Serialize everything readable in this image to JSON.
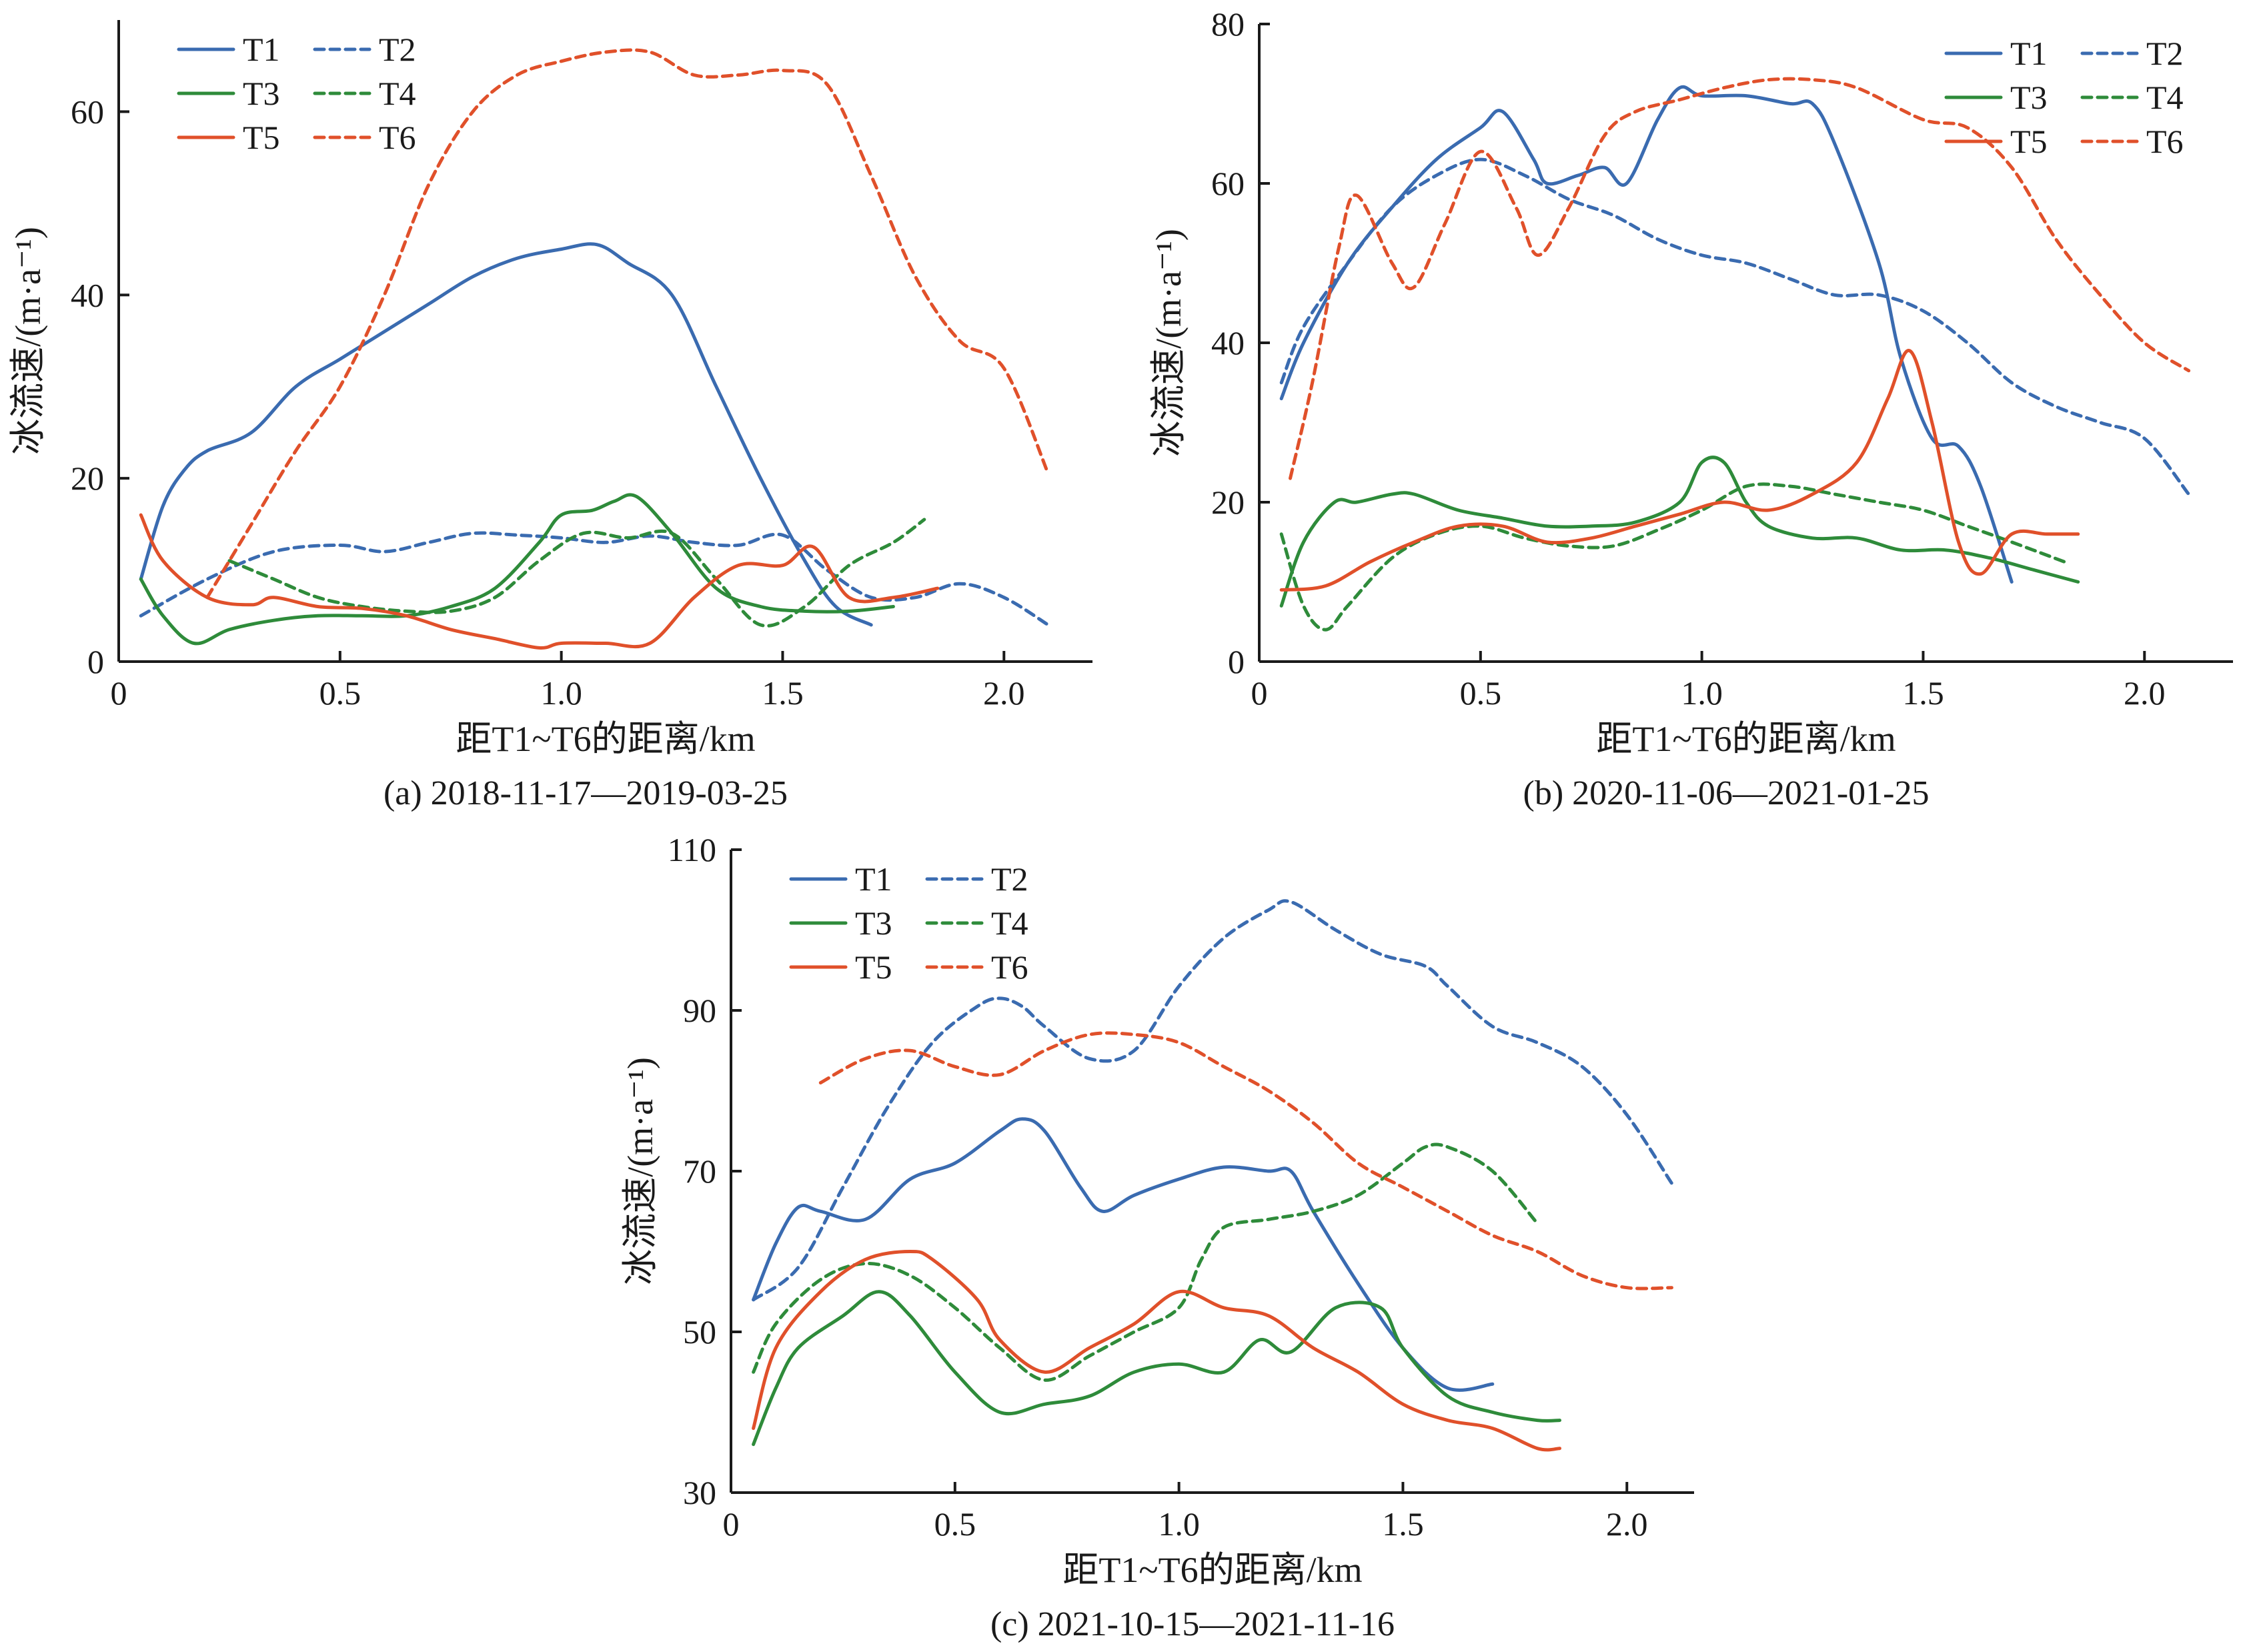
{
  "colors": {
    "blue": "#3a6bb0",
    "green": "#2e8b3a",
    "red": "#e0502a"
  },
  "chart_data": [
    {
      "type": "line",
      "caption": "(a) 2018-11-17—2019-03-25",
      "xlabel": "距T1~T6的距离/km",
      "ylabel": "冰流速/(m·a⁻¹)",
      "xlim": [
        0,
        2.2
      ],
      "ylim": [
        0,
        70
      ],
      "xticks": [
        0,
        0.5,
        1.0,
        1.5,
        2.0
      ],
      "xtick_labels": [
        "0",
        "0.5",
        "1.0",
        "1.5",
        "2.0"
      ],
      "yticks": [
        0,
        20,
        40,
        60
      ],
      "ytick_labels": [
        "0",
        "20",
        "40",
        "60"
      ],
      "legend_position": "top-left",
      "series": [
        {
          "name": "T1",
          "color": "blue",
          "dashed": false,
          "x": [
            0.05,
            0.1,
            0.15,
            0.2,
            0.3,
            0.4,
            0.5,
            0.6,
            0.7,
            0.8,
            0.9,
            1.0,
            1.08,
            1.15,
            1.25,
            1.35,
            1.45,
            1.55,
            1.62,
            1.7
          ],
          "y": [
            9,
            17,
            21,
            23,
            25,
            30,
            33,
            36,
            39,
            42,
            44,
            45,
            45.5,
            43.5,
            40,
            30,
            20,
            11,
            6,
            4
          ]
        },
        {
          "name": "T2",
          "color": "blue",
          "dashed": true,
          "x": [
            0.05,
            0.2,
            0.35,
            0.5,
            0.6,
            0.7,
            0.8,
            0.9,
            1.0,
            1.1,
            1.2,
            1.3,
            1.4,
            1.5,
            1.6,
            1.7,
            1.8,
            1.9,
            2.0,
            2.1
          ],
          "y": [
            5,
            9,
            12,
            12.7,
            12,
            13,
            14,
            13.8,
            13.5,
            13,
            13.7,
            13,
            12.7,
            13.8,
            10,
            7,
            7,
            8.5,
            7,
            4
          ]
        },
        {
          "name": "T3",
          "color": "green",
          "dashed": false,
          "x": [
            0.05,
            0.1,
            0.17,
            0.25,
            0.35,
            0.45,
            0.55,
            0.65,
            0.75,
            0.85,
            0.95,
            1.0,
            1.07,
            1.12,
            1.17,
            1.25,
            1.35,
            1.45,
            1.55,
            1.65,
            1.75
          ],
          "y": [
            9,
            5,
            2,
            3.5,
            4.5,
            5,
            5,
            5,
            6,
            8,
            13,
            16,
            16.5,
            17.5,
            18,
            14,
            8,
            6,
            5.5,
            5.5,
            6
          ]
        },
        {
          "name": "T4",
          "color": "green",
          "dashed": true,
          "x": [
            0.25,
            0.35,
            0.45,
            0.55,
            0.65,
            0.75,
            0.85,
            0.95,
            1.05,
            1.15,
            1.25,
            1.35,
            1.45,
            1.55,
            1.65,
            1.75,
            1.82
          ],
          "y": [
            11,
            9,
            7,
            6,
            5.5,
            5.5,
            7,
            11,
            14,
            13.5,
            14,
            9,
            4,
            6,
            10.5,
            13,
            15.5
          ]
        },
        {
          "name": "T5",
          "color": "red",
          "dashed": false,
          "x": [
            0.05,
            0.1,
            0.2,
            0.3,
            0.35,
            0.45,
            0.55,
            0.65,
            0.75,
            0.85,
            0.95,
            1.0,
            1.1,
            1.2,
            1.3,
            1.4,
            1.5,
            1.57,
            1.65,
            1.75,
            1.85
          ],
          "y": [
            16,
            11,
            7,
            6.2,
            7,
            6,
            5.8,
            5,
            3.5,
            2.5,
            1.5,
            2,
            2,
            2,
            7,
            10.5,
            10.5,
            12.5,
            7,
            7,
            8
          ]
        },
        {
          "name": "T6",
          "color": "red",
          "dashed": true,
          "x": [
            0.2,
            0.3,
            0.4,
            0.5,
            0.6,
            0.7,
            0.8,
            0.9,
            1.0,
            1.1,
            1.2,
            1.3,
            1.4,
            1.5,
            1.6,
            1.7,
            1.8,
            1.9,
            2.0,
            2.1
          ],
          "y": [
            7,
            15,
            23,
            30,
            40,
            52,
            60,
            64,
            65.5,
            66.5,
            66.5,
            64,
            64,
            64.5,
            63,
            53,
            42,
            35,
            32,
            20.5
          ]
        }
      ]
    },
    {
      "type": "line",
      "caption": "(b) 2020-11-06—2021-01-25",
      "xlabel": "距T1~T6的距离/km",
      "ylabel": "冰流速/(m·a⁻¹)",
      "xlim": [
        0,
        2.2
      ],
      "ylim": [
        0,
        80
      ],
      "xticks": [
        0,
        0.5,
        1.0,
        1.5,
        2.0
      ],
      "xtick_labels": [
        "0",
        "0.5",
        "1.0",
        "1.5",
        "2.0"
      ],
      "yticks": [
        0,
        20,
        40,
        60,
        80
      ],
      "ytick_labels": [
        "0",
        "20",
        "40",
        "60",
        "80"
      ],
      "legend_position": "top-right",
      "series": [
        {
          "name": "T1",
          "color": "blue",
          "dashed": false,
          "x": [
            0.05,
            0.1,
            0.2,
            0.3,
            0.4,
            0.5,
            0.55,
            0.62,
            0.65,
            0.72,
            0.78,
            0.83,
            0.9,
            0.95,
            1.0,
            1.1,
            1.2,
            1.25,
            1.3,
            1.4,
            1.45,
            1.52,
            1.58,
            1.63,
            1.7
          ],
          "y": [
            33,
            40,
            50,
            57,
            63,
            67,
            69,
            63,
            60,
            61,
            62,
            60,
            68,
            72,
            71,
            71,
            70,
            70,
            65,
            50,
            38,
            28,
            27,
            22,
            10
          ]
        },
        {
          "name": "T2",
          "color": "blue",
          "dashed": true,
          "x": [
            0.05,
            0.1,
            0.2,
            0.3,
            0.4,
            0.5,
            0.6,
            0.7,
            0.8,
            0.9,
            1.0,
            1.1,
            1.2,
            1.3,
            1.4,
            1.5,
            1.6,
            1.7,
            1.8,
            1.9,
            2.0,
            2.1
          ],
          "y": [
            35,
            42,
            50,
            57,
            61,
            63,
            61,
            58,
            56,
            53,
            51,
            50,
            48,
            46,
            46,
            44,
            40,
            35,
            32,
            30,
            28,
            21
          ]
        },
        {
          "name": "T3",
          "color": "green",
          "dashed": false,
          "x": [
            0.05,
            0.1,
            0.17,
            0.22,
            0.3,
            0.35,
            0.45,
            0.55,
            0.65,
            0.75,
            0.85,
            0.95,
            1.0,
            1.05,
            1.1,
            1.15,
            1.25,
            1.35,
            1.45,
            1.55,
            1.65,
            1.75,
            1.85
          ],
          "y": [
            7,
            15,
            20,
            20,
            21,
            21,
            19,
            18,
            17,
            17,
            17.5,
            20,
            25,
            25,
            20,
            17,
            15.5,
            15.5,
            14,
            14,
            13,
            11.5,
            10
          ]
        },
        {
          "name": "T4",
          "color": "green",
          "dashed": true,
          "x": [
            0.05,
            0.1,
            0.15,
            0.2,
            0.3,
            0.4,
            0.5,
            0.6,
            0.7,
            0.8,
            0.9,
            1.0,
            1.1,
            1.2,
            1.3,
            1.4,
            1.5,
            1.6,
            1.7,
            1.82
          ],
          "y": [
            16,
            7,
            4,
            7,
            13,
            16,
            17,
            15.5,
            14.5,
            14.5,
            16.5,
            19,
            22,
            22,
            21,
            20,
            19,
            17,
            15,
            12.5
          ]
        },
        {
          "name": "T5",
          "color": "red",
          "dashed": false,
          "x": [
            0.05,
            0.15,
            0.25,
            0.35,
            0.45,
            0.55,
            0.65,
            0.75,
            0.85,
            0.95,
            1.05,
            1.15,
            1.25,
            1.35,
            1.42,
            1.47,
            1.52,
            1.58,
            1.63,
            1.7,
            1.78,
            1.85
          ],
          "y": [
            9,
            9.5,
            12.5,
            15,
            17,
            17,
            15,
            15.5,
            17,
            18.5,
            20,
            19,
            21,
            25,
            33,
            39,
            30,
            15,
            11,
            16,
            16,
            16
          ]
        },
        {
          "name": "T6",
          "color": "red",
          "dashed": true,
          "x": [
            0.07,
            0.12,
            0.18,
            0.22,
            0.3,
            0.35,
            0.42,
            0.5,
            0.58,
            0.63,
            0.7,
            0.78,
            0.85,
            0.95,
            1.05,
            1.15,
            1.25,
            1.35,
            1.5,
            1.6,
            1.7,
            1.8,
            1.9,
            2.0,
            2.1
          ],
          "y": [
            23,
            35,
            52,
            58.5,
            50,
            47,
            55,
            64,
            57,
            51,
            57,
            66,
            69,
            70.5,
            72,
            73,
            73,
            72,
            68,
            67,
            62,
            53,
            46,
            40,
            36.5
          ]
        }
      ]
    },
    {
      "type": "line",
      "caption": "(c) 2021-10-15—2021-11-16",
      "xlabel": "距T1~T6的距离/km",
      "ylabel": "冰流速/(m·a⁻¹)",
      "xlim": [
        0,
        2.15
      ],
      "ylim": [
        30,
        110
      ],
      "xticks": [
        0,
        0.5,
        1.0,
        1.5,
        2.0
      ],
      "xtick_labels": [
        "0",
        "0.5",
        "1.0",
        "1.5",
        "2.0"
      ],
      "yticks": [
        30,
        50,
        70,
        90,
        110
      ],
      "ytick_labels": [
        "30",
        "50",
        "70",
        "90",
        "110"
      ],
      "legend_position": "top-left",
      "series": [
        {
          "name": "T1",
          "color": "blue",
          "dashed": false,
          "x": [
            0.05,
            0.1,
            0.15,
            0.2,
            0.3,
            0.4,
            0.5,
            0.6,
            0.65,
            0.7,
            0.78,
            0.83,
            0.9,
            1.0,
            1.1,
            1.2,
            1.25,
            1.3,
            1.4,
            1.5,
            1.6,
            1.7
          ],
          "y": [
            54,
            61,
            65.5,
            65,
            64,
            69,
            71,
            75,
            76.5,
            75,
            68,
            65,
            67,
            69,
            70.5,
            70,
            70,
            65,
            56,
            48,
            43,
            43.5
          ]
        },
        {
          "name": "T2",
          "color": "blue",
          "dashed": true,
          "x": [
            0.05,
            0.15,
            0.25,
            0.35,
            0.45,
            0.55,
            0.6,
            0.65,
            0.7,
            0.8,
            0.9,
            1.0,
            1.1,
            1.2,
            1.25,
            1.35,
            1.45,
            1.55,
            1.6,
            1.7,
            1.8,
            1.9,
            2.0,
            2.1
          ],
          "y": [
            54,
            58,
            68,
            78,
            86,
            90.5,
            91.5,
            90.5,
            88,
            84,
            85,
            93,
            99,
            102.5,
            103.5,
            100,
            97,
            95.5,
            93,
            88,
            86,
            83,
            77,
            68.5
          ]
        },
        {
          "name": "T3",
          "color": "green",
          "dashed": false,
          "x": [
            0.05,
            0.1,
            0.15,
            0.25,
            0.33,
            0.4,
            0.5,
            0.6,
            0.7,
            0.8,
            0.9,
            1.0,
            1.1,
            1.18,
            1.25,
            1.35,
            1.45,
            1.5,
            1.6,
            1.7,
            1.8,
            1.85
          ],
          "y": [
            36,
            43,
            48,
            52,
            55,
            52,
            45,
            40,
            41,
            42,
            45,
            46,
            45,
            49,
            47.5,
            53,
            53,
            48,
            42,
            40,
            39,
            39
          ]
        },
        {
          "name": "T4",
          "color": "green",
          "dashed": true,
          "x": [
            0.05,
            0.1,
            0.2,
            0.3,
            0.4,
            0.5,
            0.6,
            0.7,
            0.8,
            0.9,
            1.0,
            1.05,
            1.1,
            1.2,
            1.3,
            1.4,
            1.5,
            1.55,
            1.6,
            1.7,
            1.8
          ],
          "y": [
            45,
            51,
            56.5,
            58.5,
            57,
            53,
            48,
            44,
            47,
            50,
            53,
            59,
            63,
            64,
            65,
            67,
            71,
            73,
            73,
            70,
            63.5
          ]
        },
        {
          "name": "T5",
          "color": "red",
          "dashed": false,
          "x": [
            0.05,
            0.1,
            0.2,
            0.3,
            0.4,
            0.45,
            0.55,
            0.6,
            0.7,
            0.8,
            0.9,
            1.0,
            1.1,
            1.2,
            1.3,
            1.4,
            1.5,
            1.6,
            1.7,
            1.8,
            1.85
          ],
          "y": [
            38,
            48,
            55,
            59,
            60,
            59,
            54,
            49,
            45,
            48,
            51,
            55,
            53,
            52,
            48,
            45,
            41,
            39,
            38,
            35.5,
            35.5
          ]
        },
        {
          "name": "T6",
          "color": "red",
          "dashed": true,
          "x": [
            0.2,
            0.3,
            0.4,
            0.5,
            0.6,
            0.7,
            0.8,
            0.9,
            1.0,
            1.1,
            1.2,
            1.3,
            1.4,
            1.5,
            1.6,
            1.7,
            1.8,
            1.9,
            2.0,
            2.1
          ],
          "y": [
            81,
            84,
            85,
            83,
            82,
            85,
            87,
            87,
            86,
            83,
            80,
            76,
            71,
            68,
            65,
            62,
            60,
            57,
            55.5,
            55.5
          ]
        }
      ]
    }
  ]
}
